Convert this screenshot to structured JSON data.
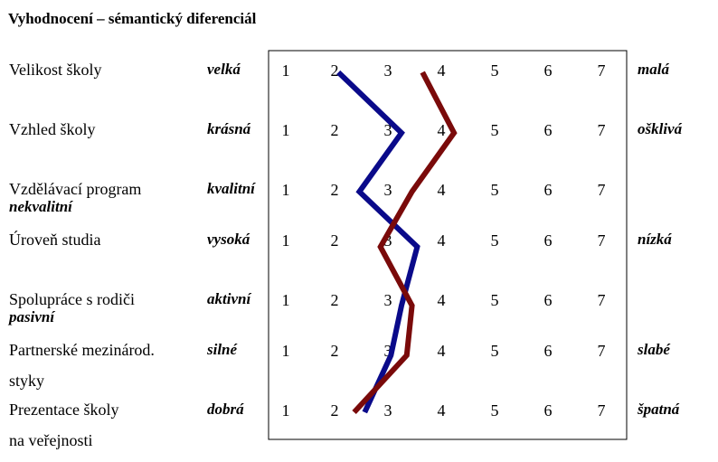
{
  "title": "Vyhodnocení  – sémantický  diferenciál",
  "scale_labels": [
    "1",
    "2",
    "3",
    "4",
    "5",
    "6",
    "7"
  ],
  "colors": {
    "series1": "#0a0a8a",
    "series2": "#7a0a0a",
    "frame": "#000000"
  },
  "rows": [
    {
      "label": "Velikost školy",
      "label2": "",
      "left": "velká",
      "left2": "",
      "right": "malá"
    },
    {
      "label": "Vzhled školy",
      "label2": "",
      "left": "krásná",
      "left2": "",
      "right": "ošklivá"
    },
    {
      "label": "Vzdělávací program",
      "label2": "",
      "left": "kvalitní",
      "left2": "nekvalitní",
      "right": ""
    },
    {
      "label": "Úroveň studia",
      "label2": "",
      "left": "vysoká",
      "left2": "",
      "right": "nízká"
    },
    {
      "label": "Spolupráce s rodiči",
      "label2": "",
      "left": "aktivní",
      "left2": "pasivní",
      "right": ""
    },
    {
      "label": "Partnerské mezinárod.",
      "label2": "styky",
      "left": "silné",
      "left2": "",
      "right": "slabé"
    },
    {
      "label": "Prezentace školy",
      "label2": "na veřejnosti",
      "left": "dobrá",
      "left2": "",
      "right": "špatná"
    }
  ],
  "chart_data": {
    "type": "line",
    "categories": [
      "Velikost školy",
      "Vzhled školy",
      "Vzdělávací program",
      "Úroveň studia",
      "Spolupráce s rodiči",
      "Partnerské mezinárod. styky",
      "Prezentace školy na veřejnosti"
    ],
    "xlim": [
      1,
      7
    ],
    "series": [
      {
        "color": "#0a0a8a",
        "values": [
          2.0,
          3.2,
          2.4,
          3.5,
          3.2,
          3.0,
          2.5
        ]
      },
      {
        "color": "#7a0a0a",
        "values": [
          3.6,
          4.2,
          3.4,
          2.8,
          3.4,
          3.3,
          2.3
        ]
      }
    ]
  }
}
